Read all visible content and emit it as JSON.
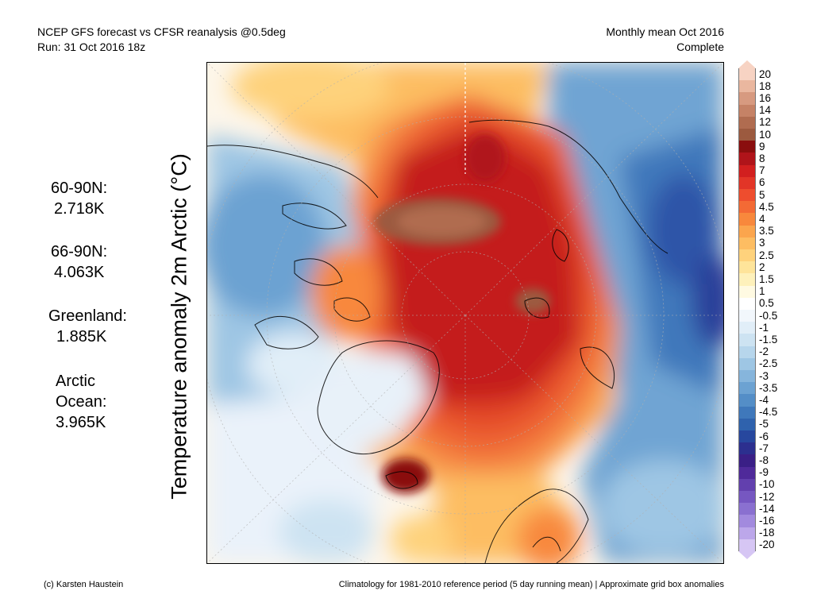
{
  "header": {
    "line1": "NCEP GFS forecast vs CFSR reanalysis @0.5deg",
    "line2": "Run: 31 Oct 2016 18z",
    "period": "Monthly mean Oct 2016",
    "status": "Complete"
  },
  "map_title": "Temperature anomaly 2m Arctic (°C)",
  "regions": [
    {
      "name": "60-90N:",
      "value": "2.718K"
    },
    {
      "name": "66-90N:",
      "value": "4.063K"
    },
    {
      "name": "Greenland:",
      "value": "1.885K"
    },
    {
      "name": "Arctic Ocean:",
      "value": "3.965K"
    }
  ],
  "colorbar": {
    "labels": [
      "20",
      "18",
      "16",
      "14",
      "12",
      "10",
      "9",
      "8",
      "7",
      "6",
      "5",
      "4.5",
      "4",
      "3.5",
      "3",
      "2.5",
      "2",
      "1.5",
      "1",
      "0.5",
      "-0.5",
      "-1",
      "-1.5",
      "-2",
      "-2.5",
      "-3",
      "-3.5",
      "-4",
      "-4.5",
      "-5",
      "-6",
      "-7",
      "-8",
      "-9",
      "-10",
      "-12",
      "-14",
      "-16",
      "-18",
      "-20"
    ],
    "colors": [
      "#f7d3c3",
      "#eab79f",
      "#d79a80",
      "#c58266",
      "#b06c50",
      "#9c5a3f",
      "#8a0e0e",
      "#b0141a",
      "#d21f1f",
      "#e23527",
      "#ee4d2e",
      "#f36a35",
      "#f8883c",
      "#fba54d",
      "#fdbd62",
      "#fed27c",
      "#fee49a",
      "#fef1bb",
      "#fffae2",
      "#ffffff",
      "#f2f7fc",
      "#e1eef8",
      "#cde3f2",
      "#b7d6ec",
      "#9ec6e4",
      "#86b5dc",
      "#6ca2d2",
      "#548ec7",
      "#3f78bb",
      "#2f62ad",
      "#27479e",
      "#2c2f8f",
      "#3a1f86",
      "#4f2a9a",
      "#6240ae",
      "#7657c1",
      "#8a70d0",
      "#a28ade",
      "#bca7ea",
      "#d6c6f4"
    ]
  },
  "footer": {
    "credit": "(c) Karsten Haustein",
    "note": "Climatology for 1981-2010 reference period (5 day running mean) | Approximate grid box anomalies"
  }
}
